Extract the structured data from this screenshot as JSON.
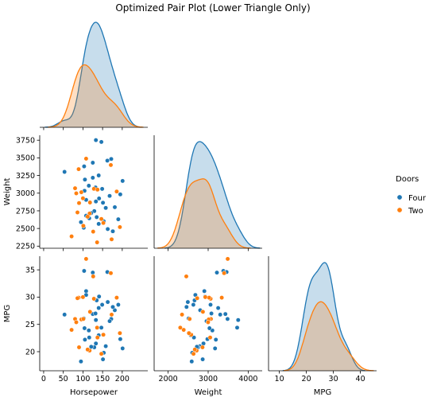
{
  "chart_data": {
    "type": "pairplot",
    "title": "Optimized Pair Plot (Lower Triangle Only)",
    "variables": [
      "Horsepower",
      "Weight",
      "MPG"
    ],
    "legend": {
      "title": "Doors",
      "placement": "right",
      "entries": [
        {
          "name": "Four",
          "color": "#1f77b4"
        },
        {
          "name": "Two",
          "color": "#ff7f0e"
        }
      ]
    },
    "axes": {
      "Horsepower": {
        "lim": [
          -10,
          265
        ],
        "ticks": [
          0,
          50,
          100,
          150,
          200
        ],
        "tick_labels": [
          "0",
          "50",
          "100",
          "150",
          "200"
        ]
      },
      "Weight": {
        "lim": [
          2220,
          3820
        ],
        "ticks": [
          2250,
          2500,
          2750,
          3000,
          3250,
          3500,
          3750
        ],
        "tick_labels": [
          "2250",
          "2500",
          "2750",
          "3000",
          "3250",
          "3500",
          "3750"
        ],
        "x_ticks": [
          2000,
          3000,
          4000
        ],
        "x_tick_labels": [
          "2000",
          "3000",
          "4000"
        ],
        "x_lim": [
          1650,
          4350
        ]
      },
      "MPG": {
        "lim": [
          16.5,
          37.5
        ],
        "ticks": [
          20,
          25,
          30,
          35
        ],
        "tick_labels": [
          "20",
          "25",
          "30",
          "35"
        ],
        "x_ticks": [
          10,
          20,
          30,
          40
        ],
        "x_tick_labels": [
          "10",
          "20",
          "30",
          "40"
        ],
        "x_lim": [
          6,
          46
        ]
      }
    },
    "series": [
      {
        "name": "Four",
        "color": "#1f77b4",
        "points": [
          {
            "hp": 133,
            "wt": 3751,
            "mpg": 25.8
          },
          {
            "hp": 147,
            "wt": 3725,
            "mpg": 24.4
          },
          {
            "hp": 162,
            "wt": 3461,
            "mpg": 34.6
          },
          {
            "hp": 172,
            "wt": 3484,
            "mpg": 26.0
          },
          {
            "hp": 125,
            "wt": 3431,
            "mpg": 26.9
          },
          {
            "hp": 103,
            "wt": 3380,
            "mpg": 34.8
          },
          {
            "hp": 53,
            "wt": 3302,
            "mpg": 26.8
          },
          {
            "hp": 125,
            "wt": 3218,
            "mpg": 34.5
          },
          {
            "hp": 105,
            "wt": 3192,
            "mpg": 22.2
          },
          {
            "hp": 140,
            "wt": 3251,
            "mpg": 28.0
          },
          {
            "hp": 201,
            "wt": 3173,
            "mpg": 20.6
          },
          {
            "hp": 115,
            "wt": 3106,
            "mpg": 23.9
          },
          {
            "hp": 132,
            "wt": 3081,
            "mpg": 27.0
          },
          {
            "hp": 149,
            "wt": 3060,
            "mpg": 28.6
          },
          {
            "hp": 104,
            "wt": 3033,
            "mpg": 24.3
          },
          {
            "hp": 195,
            "wt": 2983,
            "mpg": 22.3
          },
          {
            "hp": 168,
            "wt": 2961,
            "mpg": 25.6
          },
          {
            "hp": 141,
            "wt": 2925,
            "mpg": 30.1
          },
          {
            "hp": 108,
            "wt": 2905,
            "mpg": 31.1
          },
          {
            "hp": 133,
            "wt": 2882,
            "mpg": 21.5
          },
          {
            "hp": 151,
            "wt": 2864,
            "mpg": 18.6
          },
          {
            "hp": 181,
            "wt": 2801,
            "mpg": 27.6
          },
          {
            "hp": 158,
            "wt": 2791,
            "mpg": 21.0
          },
          {
            "hp": 129,
            "wt": 2746,
            "mpg": 20.8
          },
          {
            "hp": 121,
            "wt": 2718,
            "mpg": 20.9
          },
          {
            "hp": 108,
            "wt": 2681,
            "mpg": 30.4
          },
          {
            "hp": 135,
            "wt": 2661,
            "mpg": 29.4
          },
          {
            "hp": 116,
            "wt": 2645,
            "mpg": 22.6
          },
          {
            "hp": 190,
            "wt": 2630,
            "mpg": 28.6
          },
          {
            "hp": 153,
            "wt": 2602,
            "mpg": 19.8
          },
          {
            "hp": 95,
            "wt": 2590,
            "mpg": 18.2
          },
          {
            "hp": 140,
            "wt": 2565,
            "mpg": 23.0
          },
          {
            "hp": 102,
            "wt": 2511,
            "mpg": 26.1
          },
          {
            "hp": 163,
            "wt": 2492,
            "mpg": 29.1
          },
          {
            "hp": 176,
            "wt": 2460,
            "mpg": 28.2
          }
        ]
      },
      {
        "name": "Two",
        "color": "#ff7f0e",
        "points": [
          {
            "hp": 108,
            "wt": 3489,
            "mpg": 37.0
          },
          {
            "hp": 171,
            "wt": 3399,
            "mpg": 34.4
          },
          {
            "hp": 89,
            "wt": 3340,
            "mpg": 29.9
          },
          {
            "hp": 80,
            "wt": 3070,
            "mpg": 26.0
          },
          {
            "hp": 128,
            "wt": 3062,
            "mpg": 29.7
          },
          {
            "hp": 137,
            "wt": 3050,
            "mpg": 22.6
          },
          {
            "hp": 186,
            "wt": 3023,
            "mpg": 29.9
          },
          {
            "hp": 96,
            "wt": 3013,
            "mpg": 25.9
          },
          {
            "hp": 83,
            "wt": 2998,
            "mpg": 25.4
          },
          {
            "hp": 100,
            "wt": 2928,
            "mpg": 30.0
          },
          {
            "hp": 118,
            "wt": 2868,
            "mpg": 27.3
          },
          {
            "hp": 86,
            "wt": 2727,
            "mpg": 29.8
          },
          {
            "hp": 117,
            "wt": 2712,
            "mpg": 20.2
          },
          {
            "hp": 112,
            "wt": 2667,
            "mpg": 20.4
          },
          {
            "hp": 152,
            "wt": 2578,
            "mpg": 23.1
          },
          {
            "hp": 101,
            "wt": 2538,
            "mpg": 26.0
          },
          {
            "hp": 194,
            "wt": 2520,
            "mpg": 23.4
          },
          {
            "hp": 173,
            "wt": 2346,
            "mpg": 26.8
          },
          {
            "hp": 71,
            "wt": 2388,
            "mpg": 24.0
          },
          {
            "hp": 136,
            "wt": 2303,
            "mpg": 24.4
          },
          {
            "hp": 147,
            "wt": 2635,
            "mpg": 19.6
          },
          {
            "hp": 126,
            "wt": 2455,
            "mpg": 33.8
          },
          {
            "hp": 90,
            "wt": 2860,
            "mpg": 20.8
          }
        ]
      }
    ]
  }
}
